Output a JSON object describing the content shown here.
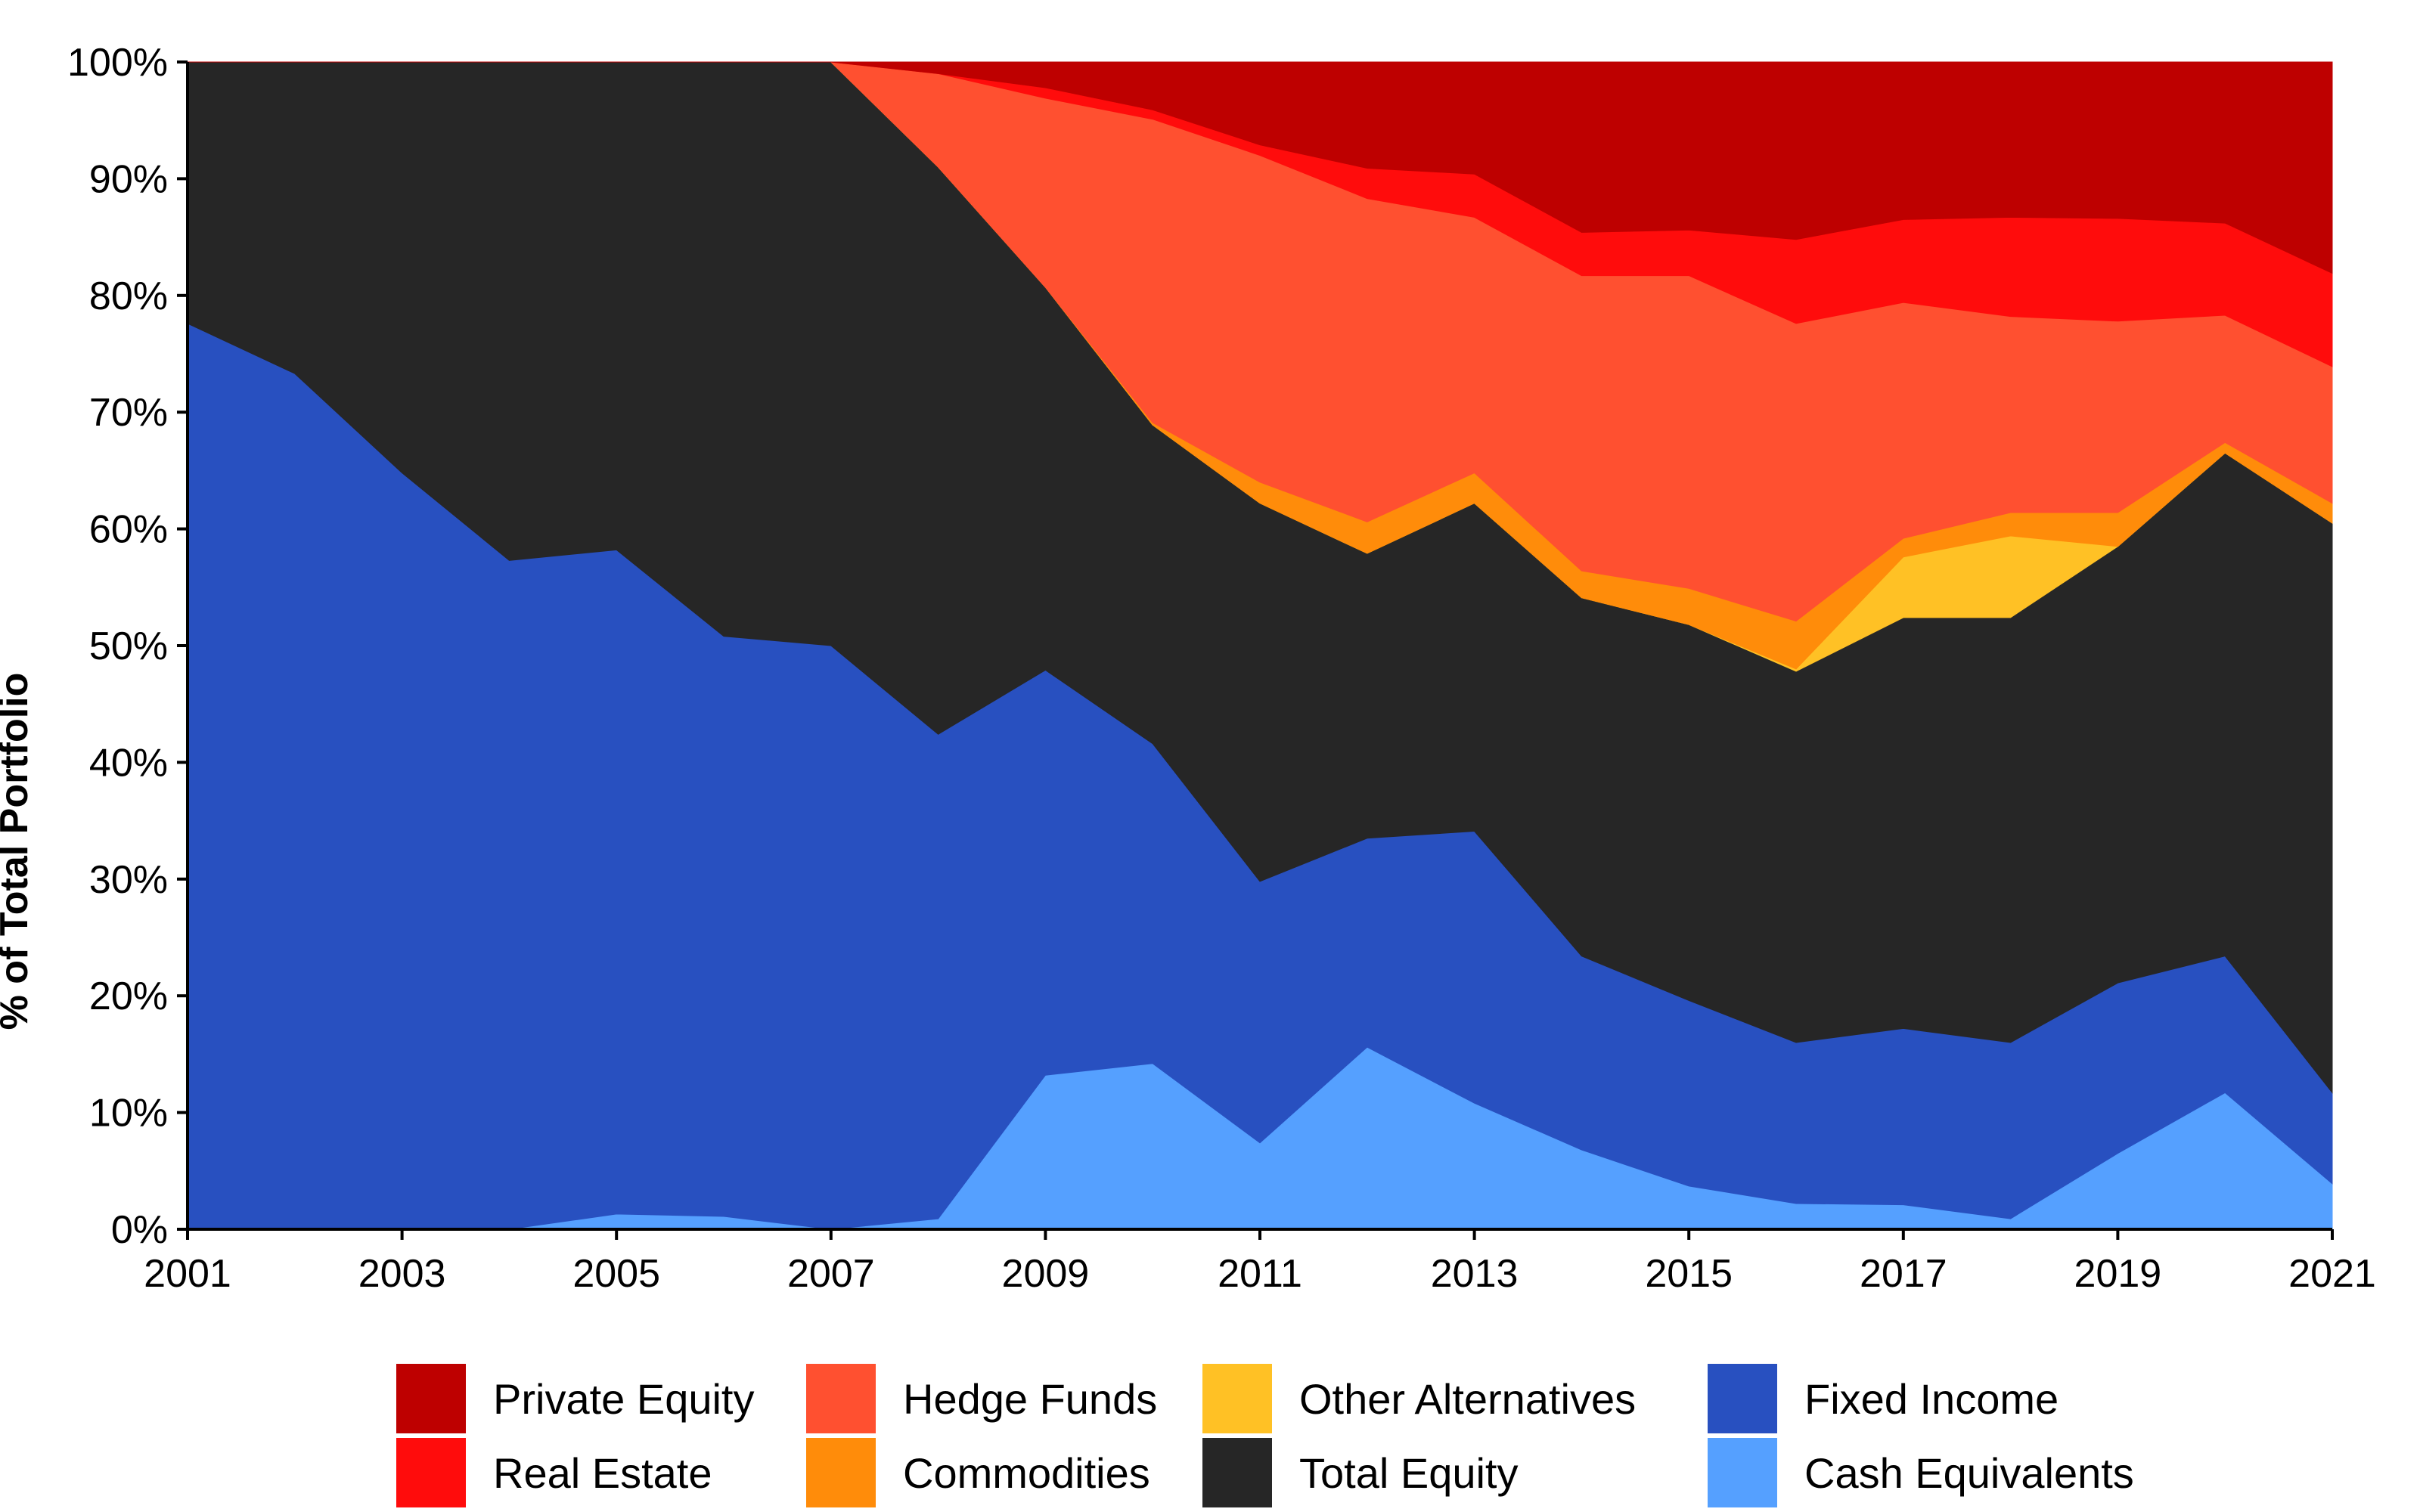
{
  "chart_data": {
    "type": "area",
    "stacked": true,
    "title": "",
    "xlabel": "",
    "ylabel": "% of Total Portfolio",
    "x": [
      2001,
      2002,
      2003,
      2004,
      2005,
      2006,
      2007,
      2008,
      2009,
      2010,
      2011,
      2012,
      2013,
      2014,
      2015,
      2016,
      2017,
      2018,
      2019,
      2020,
      2021
    ],
    "x_ticks": [
      "2001",
      "2003",
      "2005",
      "2007",
      "2009",
      "2011",
      "2013",
      "2015",
      "2017",
      "2019",
      "2021"
    ],
    "y_ticks": [
      "0%",
      "10%",
      "20%",
      "30%",
      "40%",
      "50%",
      "60%",
      "70%",
      "80%",
      "90%",
      "100%"
    ],
    "ylim": [
      0,
      100
    ],
    "grid": false,
    "legend_position": "bottom",
    "series": [
      {
        "name": "Cash Equivalents",
        "color": "#55A0FF",
        "values": [
          0,
          0,
          0,
          0,
          1.3,
          1.1,
          0,
          0.9,
          13.2,
          14.2,
          7.4,
          15.6,
          10.8,
          6.8,
          3.7,
          2.2,
          2.1,
          0.9,
          6.5,
          11.7,
          3.9
        ]
      },
      {
        "name": "Fixed Income",
        "color": "#2850C0",
        "values": [
          77.6,
          73.3,
          64.8,
          57.3,
          56.9,
          49.7,
          50.0,
          41.5,
          34.7,
          27.4,
          22.4,
          17.9,
          23.3,
          16.6,
          15.9,
          13.8,
          15.1,
          15.1,
          14.6,
          11.7,
          7.8
        ]
      },
      {
        "name": "Total Equity",
        "color": "#262626",
        "values": [
          22.4,
          26.7,
          35.2,
          42.7,
          41.8,
          49.2,
          50.0,
          48.6,
          32.8,
          27.3,
          32.4,
          24.4,
          28.1,
          30.7,
          32.2,
          31.8,
          35.2,
          36.4,
          37.4,
          43.1,
          48.8
        ]
      },
      {
        "name": "Other Alternatives",
        "color": "#FFC125",
        "values": [
          0,
          0,
          0,
          0,
          0,
          0,
          0,
          0,
          0,
          0,
          0,
          0,
          0,
          0,
          0,
          0.2,
          5.2,
          7.0,
          0,
          0,
          0
        ]
      },
      {
        "name": "Commodities",
        "color": "#FF8C0A",
        "values": [
          0,
          0,
          0,
          0,
          0,
          0,
          0,
          0,
          0,
          0.2,
          1.8,
          2.7,
          2.6,
          2.3,
          3.1,
          4.1,
          1.6,
          2.0,
          2.9,
          0.9,
          1.7
        ]
      },
      {
        "name": "Hedge Funds",
        "color": "#FF5030",
        "values": [
          0,
          0,
          0,
          0,
          0,
          0,
          0,
          8.0,
          16.2,
          26.0,
          28.0,
          27.7,
          21.9,
          25.3,
          26.8,
          25.5,
          20.2,
          16.8,
          16.4,
          10.9,
          11.7
        ]
      },
      {
        "name": "Real Estate",
        "color": "#FF0C0C",
        "values": [
          0,
          0,
          0,
          0,
          0,
          0,
          0,
          0,
          0.9,
          0.8,
          0.9,
          2.6,
          3.7,
          3.7,
          3.9,
          7.2,
          7.1,
          8.5,
          8.8,
          7.9,
          8.0
        ]
      },
      {
        "name": "Private Equity",
        "color": "#BE0000",
        "values": [
          0,
          0,
          0,
          0,
          0,
          0,
          0,
          1.0,
          2.2,
          4.1,
          7.1,
          9.1,
          9.6,
          14.6,
          14.4,
          15.2,
          13.5,
          13.3,
          13.4,
          13.8,
          18.1
        ]
      }
    ]
  },
  "legend": {
    "rows": [
      [
        "Private Equity",
        "Hedge Funds",
        "Other Alternatives",
        "Fixed Income"
      ],
      [
        "Real Estate",
        "Commodities",
        "Total Equity",
        "Cash Equivalents"
      ]
    ]
  }
}
